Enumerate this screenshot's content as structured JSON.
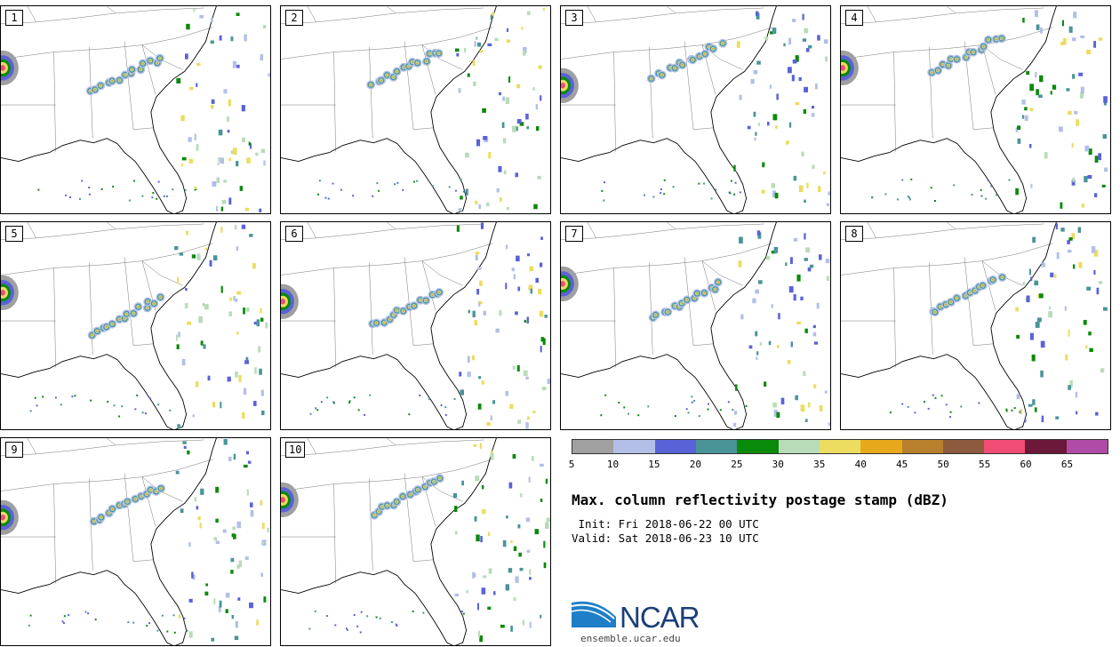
{
  "members": [
    {
      "label": "1"
    },
    {
      "label": "2"
    },
    {
      "label": "3"
    },
    {
      "label": "4"
    },
    {
      "label": "5"
    },
    {
      "label": "6"
    },
    {
      "label": "7"
    },
    {
      "label": "8"
    },
    {
      "label": "9"
    },
    {
      "label": "10"
    }
  ],
  "colorbar": {
    "colors": [
      "#a0a0a0",
      "#b4bfe8",
      "#5a62d8",
      "#4a9498",
      "#0a8a0a",
      "#b8dcb8",
      "#ecdc60",
      "#e8a81c",
      "#b8802c",
      "#8c5a3c",
      "#f04c74",
      "#6c1838",
      "#b04ca8"
    ],
    "ticks": [
      "5",
      "10",
      "15",
      "20",
      "25",
      "30",
      "35",
      "40",
      "45",
      "50",
      "55",
      "60",
      "65"
    ]
  },
  "title": "Max. column reflectivity postage stamp (dBZ)",
  "init_text": " Init: Fri 2018-06-22 00 UTC",
  "valid_text": "Valid: Sat 2018-06-23 10 UTC",
  "logo_text": "NCAR",
  "website": "ensemble.ucar.edu"
}
